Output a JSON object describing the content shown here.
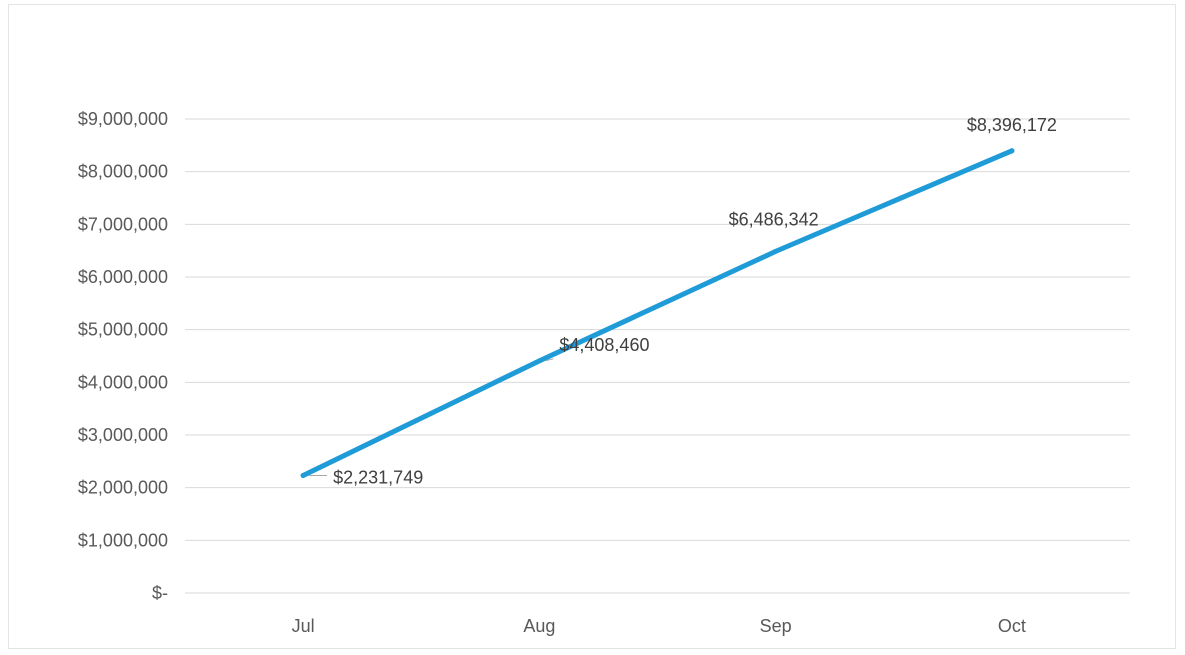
{
  "chart_data": {
    "type": "line",
    "categories": [
      "Jul",
      "Aug",
      "Sep",
      "Oct"
    ],
    "series": [
      {
        "values": [
          2231749,
          4408460,
          6486342,
          8396172
        ],
        "labels": [
          "$2,231,749",
          "$4,408,460",
          "$6,486,342",
          "$8,396,172"
        ],
        "color": "#1f9bd7"
      }
    ],
    "ylim": [
      0,
      9000000
    ],
    "yticks": [
      0,
      1000000,
      2000000,
      3000000,
      4000000,
      5000000,
      6000000,
      7000000,
      8000000,
      9000000
    ],
    "ytick_labels": [
      "$-",
      "$1,000,000",
      "$2,000,000",
      "$3,000,000",
      "$4,000,000",
      "$5,000,000",
      "$6,000,000",
      "$7,000,000",
      "$8,000,000",
      "$9,000,000"
    ],
    "grid": true,
    "legend": "none"
  }
}
